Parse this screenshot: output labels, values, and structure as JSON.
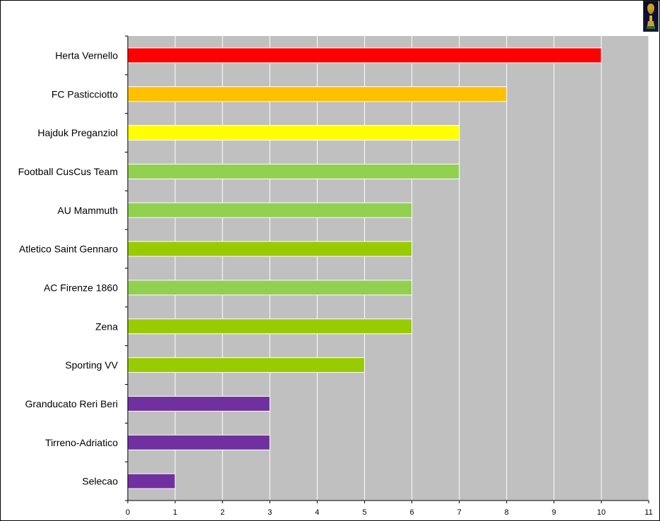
{
  "chart_data": {
    "type": "bar",
    "orientation": "horizontal",
    "categories": [
      "Herta Vernello",
      "FC Pasticciotto",
      "Hajduk Preganziol",
      "Football CusCus Team",
      "AU Mammuth",
      "Atletico Saint Gennaro",
      "AC Firenze 1860",
      "Zena",
      "Sporting VV",
      "Granducato Reri Beri",
      "Tirreno-Adriatico",
      "Selecao"
    ],
    "values": [
      10,
      8,
      7,
      7,
      6,
      6,
      6,
      6,
      5,
      3,
      3,
      1
    ],
    "colors": [
      "#ff0000",
      "#ffc000",
      "#ffff00",
      "#92d050",
      "#92d050",
      "#99cc00",
      "#92d050",
      "#99cc00",
      "#99cc00",
      "#7030a0",
      "#7030a0",
      "#7030a0"
    ],
    "xlim": [
      0,
      11
    ],
    "xticks": [
      0,
      1,
      2,
      3,
      4,
      5,
      6,
      7,
      8,
      9,
      10,
      11
    ],
    "grid": true,
    "plot_background": "#c0c0c0",
    "gridline_color": "#ffffff"
  },
  "icons": {
    "corner": "trophy-icon"
  }
}
